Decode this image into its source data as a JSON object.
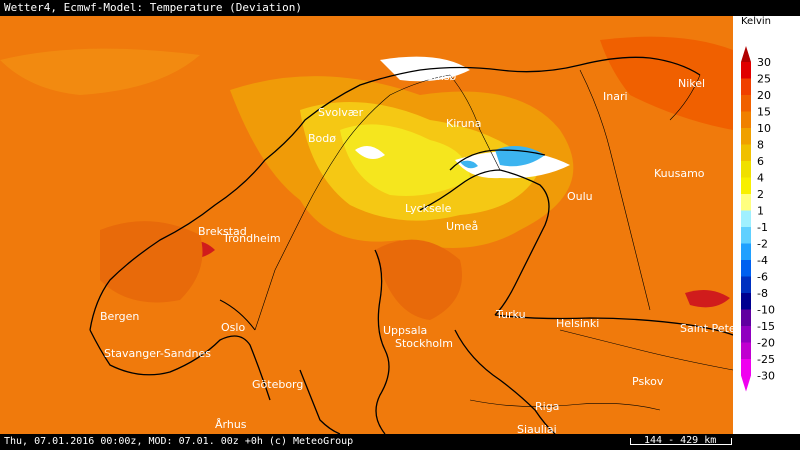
{
  "title": "Wetter4, Ecmwf-Model: Temperature (Deviation)",
  "footer": "Thu, 07.01.2016 00:00z, MOD: 07.01. 00z +0h (c) MeteoGroup",
  "scale_label": "144 - 429 km",
  "legend": {
    "unit": "Kelvin",
    "ticks": [
      "30",
      "25",
      "20",
      "15",
      "10",
      "8",
      "6",
      "4",
      "2",
      "1",
      "-1",
      "-2",
      "-4",
      "-6",
      "-8",
      "-10",
      "-15",
      "-20",
      "-25",
      "-30"
    ],
    "colors": [
      "#b00000",
      "#e00000",
      "#f04000",
      "#f06000",
      "#f08000",
      "#f0a000",
      "#f0c000",
      "#f0e000",
      "#f8f000",
      "#ffff80",
      "#a0f0ff",
      "#60d0ff",
      "#20a0ff",
      "#0060f0",
      "#0030c0",
      "#000090",
      "#6000a0",
      "#9000c0",
      "#c000d0",
      "#f000f0"
    ]
  },
  "cities": [
    {
      "name": "Tromsø"
    },
    {
      "name": "Nikel"
    },
    {
      "name": "Inari"
    },
    {
      "name": "Svolvær"
    },
    {
      "name": "Kiruna"
    },
    {
      "name": "Bodø"
    },
    {
      "name": "Kuusamo"
    },
    {
      "name": "Oulu"
    },
    {
      "name": "Lycksele"
    },
    {
      "name": "Umeå"
    },
    {
      "name": "Brekstad"
    },
    {
      "name": "Trondheim"
    },
    {
      "name": "Bergen"
    },
    {
      "name": "Turku"
    },
    {
      "name": "Helsinki"
    },
    {
      "name": "Saint Petersburg"
    },
    {
      "name": "Oslo"
    },
    {
      "name": "Uppsala"
    },
    {
      "name": "Stockholm"
    },
    {
      "name": "Stavanger-Sandnes"
    },
    {
      "name": "Pskov"
    },
    {
      "name": "Göteborg"
    },
    {
      "name": "Riga"
    },
    {
      "name": "Århus"
    },
    {
      "name": "Siauliai"
    }
  ],
  "colors": {
    "background_field": "#f07a0c",
    "warm_field": "#f09b08",
    "cool_field": "#f5e61e",
    "cold_anomaly": "#3cb4f0",
    "ice": "#ffffff",
    "hot_spot": "#d01c1c",
    "coastline": "#000000"
  }
}
